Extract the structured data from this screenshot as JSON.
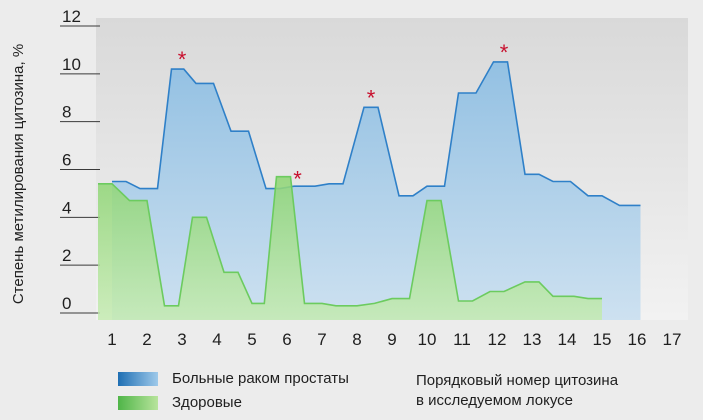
{
  "chart_data": {
    "type": "area",
    "ylabel": "Степень метилирования цитозина, %",
    "ylim": [
      0,
      12
    ],
    "yticks": [
      0,
      2,
      4,
      6,
      8,
      10,
      12
    ],
    "x": [
      1,
      2,
      3,
      4,
      5,
      6,
      7,
      8,
      9,
      10,
      11,
      12,
      13,
      14,
      15,
      16,
      17
    ],
    "x_note": [
      "Порядковый номер цитозина",
      "в исследуемом локусе"
    ],
    "series": [
      {
        "name": "Больные раком простаты",
        "color": "#2f80c8",
        "fill": "#a9cce3",
        "points": [
          [
            1,
            5.5
          ],
          [
            1.4,
            5.5
          ],
          [
            1.8,
            5.2
          ],
          [
            2.3,
            5.2
          ],
          [
            2.7,
            10.2
          ],
          [
            3.05,
            10.2
          ],
          [
            3.4,
            9.6
          ],
          [
            3.9,
            9.6
          ],
          [
            4.4,
            7.6
          ],
          [
            4.9,
            7.6
          ],
          [
            5.4,
            5.2
          ],
          [
            5.8,
            5.2
          ],
          [
            6.2,
            5.3
          ],
          [
            6.8,
            5.3
          ],
          [
            7.2,
            5.4
          ],
          [
            7.6,
            5.4
          ],
          [
            8.2,
            8.6
          ],
          [
            8.6,
            8.6
          ],
          [
            9.2,
            4.9
          ],
          [
            9.6,
            4.9
          ],
          [
            10.0,
            5.3
          ],
          [
            10.5,
            5.3
          ],
          [
            10.9,
            9.2
          ],
          [
            11.4,
            9.2
          ],
          [
            11.9,
            10.5
          ],
          [
            12.3,
            10.5
          ],
          [
            12.8,
            5.8
          ],
          [
            13.2,
            5.8
          ],
          [
            13.6,
            5.5
          ],
          [
            14.1,
            5.5
          ],
          [
            14.6,
            4.9
          ],
          [
            15.0,
            4.9
          ],
          [
            15.5,
            4.5
          ],
          [
            16.1,
            4.5
          ]
        ]
      },
      {
        "name": "Здоровые",
        "color": "#6ccb5f",
        "fill": "#b9e3a2",
        "points": [
          [
            0.6,
            5.4
          ],
          [
            1.0,
            5.4
          ],
          [
            1.5,
            4.7
          ],
          [
            2.0,
            4.7
          ],
          [
            2.5,
            0.3
          ],
          [
            2.9,
            0.3
          ],
          [
            3.3,
            4.0
          ],
          [
            3.7,
            4.0
          ],
          [
            4.2,
            1.7
          ],
          [
            4.6,
            1.7
          ],
          [
            5.0,
            0.4
          ],
          [
            5.35,
            0.4
          ],
          [
            5.7,
            5.7
          ],
          [
            6.1,
            5.7
          ],
          [
            6.5,
            0.4
          ],
          [
            7.0,
            0.4
          ],
          [
            7.4,
            0.3
          ],
          [
            8.0,
            0.3
          ],
          [
            8.5,
            0.4
          ],
          [
            9.0,
            0.6
          ],
          [
            9.5,
            0.6
          ],
          [
            10.0,
            4.7
          ],
          [
            10.4,
            4.7
          ],
          [
            10.9,
            0.5
          ],
          [
            11.3,
            0.5
          ],
          [
            11.8,
            0.9
          ],
          [
            12.2,
            0.9
          ],
          [
            12.8,
            1.3
          ],
          [
            13.2,
            1.3
          ],
          [
            13.6,
            0.7
          ],
          [
            14.2,
            0.7
          ],
          [
            14.6,
            0.6
          ],
          [
            15.0,
            0.6
          ]
        ]
      }
    ],
    "significance": [
      {
        "x": 3.0,
        "y": 10.2,
        "label": "*"
      },
      {
        "x": 6.3,
        "y": 5.2,
        "label": "*"
      },
      {
        "x": 8.4,
        "y": 8.6,
        "label": "*"
      },
      {
        "x": 12.2,
        "y": 10.5,
        "label": "*"
      }
    ],
    "marker_color": "#c8102e"
  },
  "legend": [
    {
      "label": "Больные раком простаты",
      "color": "#1f6fb3",
      "color2": "#9ec9ea"
    },
    {
      "label": "Здоровые",
      "color": "#4fb548",
      "color2": "#b8e49c"
    }
  ],
  "note": [
    "Порядковый номер цитозина",
    "в исследуемом локусе"
  ]
}
